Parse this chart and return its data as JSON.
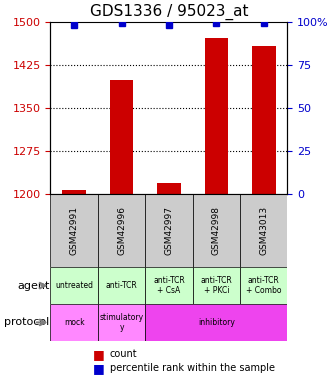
{
  "title": "GDS1336 / 95023_at",
  "samples": [
    "GSM42991",
    "GSM42996",
    "GSM42997",
    "GSM42998",
    "GSM43013"
  ],
  "count_values": [
    1207,
    1398,
    1218,
    1472,
    1458
  ],
  "percentile_values": [
    98,
    99,
    98,
    99,
    99
  ],
  "ylim_left": [
    1200,
    1500
  ],
  "ylim_right": [
    0,
    100
  ],
  "yticks_left": [
    1200,
    1275,
    1350,
    1425,
    1500
  ],
  "yticks_right": [
    0,
    25,
    50,
    75,
    100
  ],
  "bar_color": "#cc0000",
  "dot_color": "#0000cc",
  "agent_labels": [
    "untreated",
    "anti-TCR",
    "anti-TCR\n+ CsA",
    "anti-TCR\n+ PKCi",
    "anti-TCR\n+ Combo"
  ],
  "agent_color": "#ccffcc",
  "proto_spans": [
    [
      0,
      1,
      "mock",
      "#ff88ff"
    ],
    [
      1,
      2,
      "stimulatory\ny",
      "#ff88ff"
    ],
    [
      2,
      5,
      "inhibitory",
      "#ee44ee"
    ]
  ],
  "gsm_bg_color": "#cccccc",
  "legend_count_color": "#cc0000",
  "legend_pct_color": "#0000cc"
}
